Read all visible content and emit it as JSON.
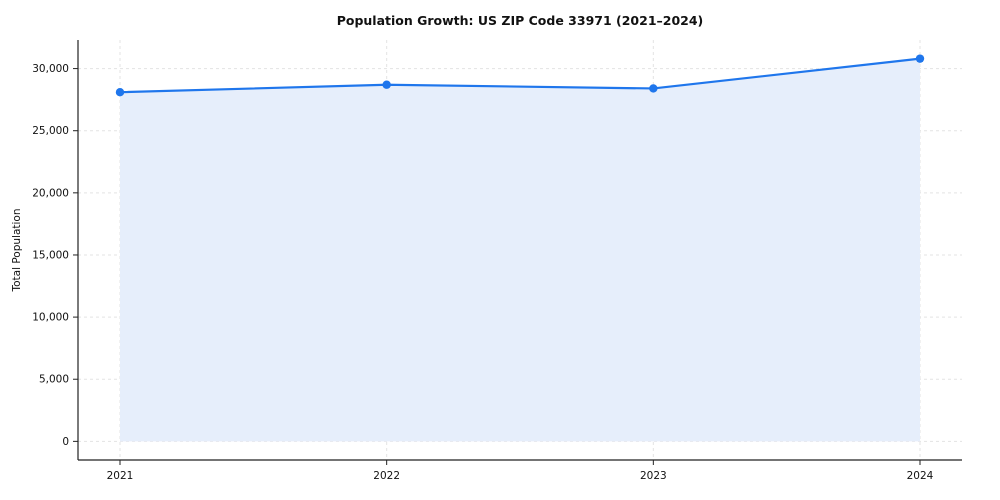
{
  "chart_data": {
    "type": "area",
    "title": "Population Growth: US ZIP Code 33971 (2021–2024)",
    "xlabel": "",
    "ylabel": "Total Population",
    "x": [
      2021,
      2022,
      2023,
      2024
    ],
    "values": [
      28100,
      28700,
      28400,
      30800
    ],
    "yticks": [
      0,
      5000,
      10000,
      15000,
      20000,
      25000,
      30000
    ],
    "ylim": [
      -1500,
      32300
    ],
    "grid": true,
    "legend": "none",
    "line_color": "#1f76ec",
    "fill_color": "#e6eefb",
    "grid_color": "#e3e3e3",
    "axis_color": "#222222",
    "text_color": "#111111"
  }
}
